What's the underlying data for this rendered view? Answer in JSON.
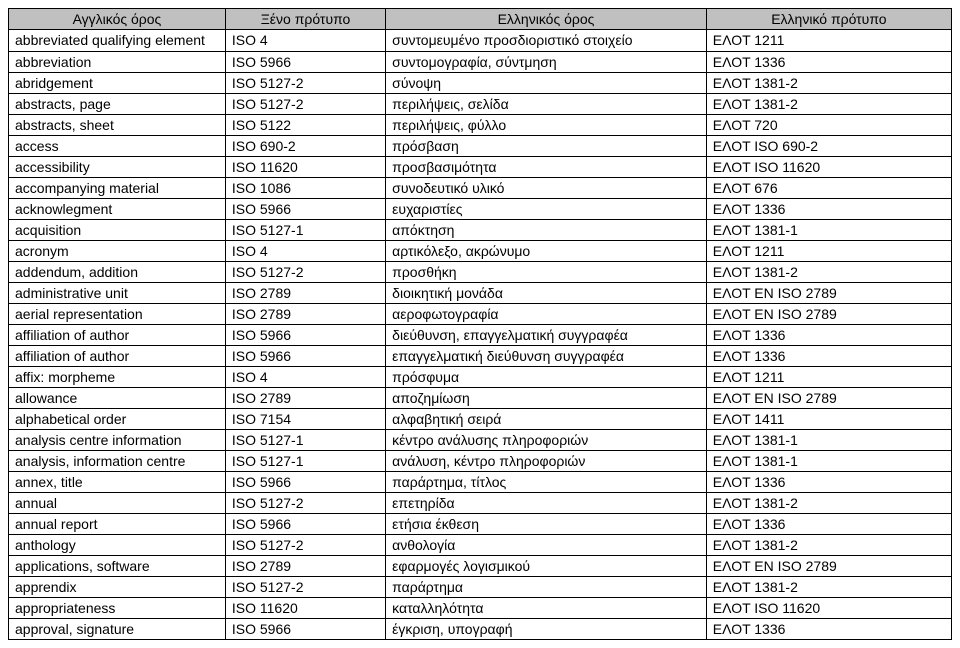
{
  "table": {
    "columns": [
      "Αγγλικός όρος",
      "Ξένο πρότυπο",
      "Ελληνικός όρος",
      "Ελληνικό πρότυπο"
    ],
    "rows": [
      [
        "abbreviated qualifying element",
        "ISO 4",
        "συντομευμένο προσδιοριστικό στοιχείο",
        "ΕΛΟΤ 1211"
      ],
      [
        "abbreviation",
        "ISO 5966",
        "συντομογραφία, σύντμηση",
        "ΕΛΟΤ 1336"
      ],
      [
        "abridgement",
        "ISO 5127-2",
        "σύνοψη",
        "ΕΛΟΤ 1381-2"
      ],
      [
        "abstracts, page",
        "ISO 5127-2",
        "περιλήψεις, σελίδα",
        "ΕΛΟΤ 1381-2"
      ],
      [
        "abstracts, sheet",
        "ISO 5122",
        "περιλήψεις, φύλλο",
        "ΕΛΟΤ 720"
      ],
      [
        "access",
        "ISO 690-2",
        "πρόσβαση",
        "ΕΛΟΤ ISO 690-2"
      ],
      [
        "accessibility",
        "ISO 11620",
        "προσβασιμότητα",
        "ΕΛΟΤ ISO 11620"
      ],
      [
        "accompanying material",
        "ISO 1086",
        "συνοδευτικό υλικό",
        "ΕΛΟΤ 676"
      ],
      [
        "acknowlegment",
        "ISO 5966",
        "ευχαριστίες",
        "ΕΛΟΤ 1336"
      ],
      [
        "acquisition",
        "ISO 5127-1",
        "απόκτηση",
        "ΕΛΟΤ 1381-1"
      ],
      [
        "acronym",
        "ISO 4",
        "αρτικόλεξο, ακρώνυμο",
        "ΕΛΟΤ 1211"
      ],
      [
        "addendum, addition",
        "ISO 5127-2",
        "προσθήκη",
        "ΕΛΟΤ 1381-2"
      ],
      [
        "administrative unit",
        "ISO 2789",
        "διοικητική μονάδα",
        "ΕΛΟΤ EN ISO 2789"
      ],
      [
        "aerial representation",
        "ISO 2789",
        "αεροφωτογραφία",
        "ΕΛΟΤ EN ISO 2789"
      ],
      [
        "affiliation of author",
        "ISO 5966",
        "διεύθυνση, επαγγελματική συγγραφέα",
        "ΕΛΟΤ 1336"
      ],
      [
        "affiliation of author",
        "ISO 5966",
        "επαγγελματική διεύθυνση συγγραφέα",
        "ΕΛΟΤ 1336"
      ],
      [
        "affix: morpheme",
        "ISO 4",
        "πρόσφυμα",
        "ΕΛΟΤ 1211"
      ],
      [
        "allowance",
        "ISO 2789",
        "αποζημίωση",
        "ΕΛΟΤ EN ISO 2789"
      ],
      [
        "alphabetical order",
        "ISO 7154",
        "αλφαβητική σειρά",
        "ΕΛΟΤ 1411"
      ],
      [
        "analysis centre  information",
        "ISO 5127-1",
        "κέντρο ανάλυσης πληροφοριών",
        "ΕΛΟΤ 1381-1"
      ],
      [
        "analysis, information centre",
        "ISO 5127-1",
        "ανάλυση, κέντρο πληροφοριών",
        "ΕΛΟΤ 1381-1"
      ],
      [
        "annex, title",
        "ISO 5966",
        "παράρτημα, τίτλος",
        "ΕΛΟΤ 1336"
      ],
      [
        "annual",
        "ISO 5127-2",
        "επετηρίδα",
        "ΕΛΟΤ 1381-2"
      ],
      [
        "annual report",
        "ISO 5966",
        "ετήσια έκθεση",
        "ΕΛΟΤ 1336"
      ],
      [
        "anthology",
        "ISO 5127-2",
        "ανθολογία",
        "ΕΛΟΤ 1381-2"
      ],
      [
        "applications, software",
        "ISO 2789",
        "εφαρμογές λογισμικού",
        "ΕΛΟΤ EN ISO 2789"
      ],
      [
        "apprendix",
        "ISO 5127-2",
        "παράρτημα",
        "ΕΛΟΤ 1381-2"
      ],
      [
        "appropriateness",
        "ISO 11620",
        "καταλληλότητα",
        "ΕΛΟΤ ISO 11620"
      ],
      [
        "approval, signature",
        "ISO 5966",
        "έγκριση, υπογραφή",
        "ΕΛΟΤ 1336"
      ]
    ],
    "header_bg": "#c0c0c0",
    "border_color": "#000000",
    "font_size": 14,
    "multiline_rows": [
      0
    ]
  }
}
